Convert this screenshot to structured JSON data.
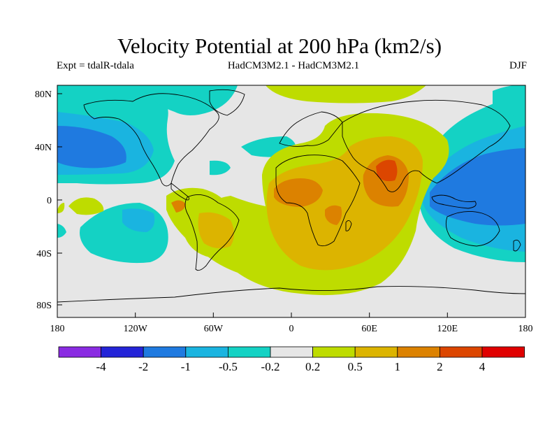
{
  "header": {
    "title": "Velocity Potential at 200 hPa (km2/s)",
    "experiment": "Expt = tdalR-tdala",
    "models": "HadCM3M2.1 - HadCM3M2.1",
    "season": "DJF"
  },
  "axes": {
    "lat_labels": [
      "80N",
      "40N",
      "0",
      "40S",
      "80S"
    ],
    "lon_labels": [
      "180",
      "120W",
      "60W",
      "0",
      "60E",
      "120E",
      "180"
    ]
  },
  "colorbar": {
    "colors": [
      "#8a2be2",
      "#2424d8",
      "#1f7ae0",
      "#1ab4e0",
      "#14d2c4",
      "#e6e6e6",
      "#bedc00",
      "#dcb400",
      "#dc8200",
      "#dc4600",
      "#e00000"
    ],
    "labels": [
      "-4",
      "-2",
      "-1",
      "-0.5",
      "-0.2",
      "0.2",
      "0.5",
      "1",
      "2",
      "4"
    ]
  },
  "palette": {
    "background": "#e6e6e6",
    "neg_weak": "#14d2c4",
    "neg_mid": "#1ab4e0",
    "neg_strong": "#1f7ae0",
    "pos_weak": "#bedc00",
    "pos_mid": "#dcb400",
    "pos_strong": "#dc8200",
    "pos_extreme": "#dc4600"
  }
}
